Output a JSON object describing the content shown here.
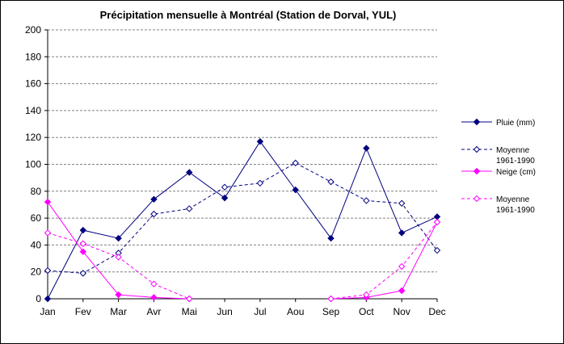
{
  "chart_data": {
    "type": "line",
    "title": "Précipitation mensuelle à Montréal (Station de Dorval, YUL)",
    "xlabel": "",
    "ylabel": "",
    "categories": [
      "Jan",
      "Fev",
      "Mar",
      "Avr",
      "Mai",
      "Jun",
      "Jul",
      "Aou",
      "Sep",
      "Oct",
      "Nov",
      "Dec"
    ],
    "ylim": [
      0,
      200
    ],
    "yticks": [
      "0",
      "20",
      "40",
      "60",
      "80",
      "100",
      "120",
      "140",
      "160",
      "180",
      "200"
    ],
    "grid": true,
    "legend_position": "right",
    "series": [
      {
        "name": "Pluie (mm)",
        "color": "#000080",
        "dashed": false,
        "marker": "diamond-filled",
        "values": [
          0,
          51,
          45,
          74,
          94,
          75,
          117,
          81,
          45,
          112,
          49,
          61
        ]
      },
      {
        "name": "Moyenne 1961-1990",
        "name_lines": [
          "Moyenne",
          "1961-1990"
        ],
        "color": "#000080",
        "dashed": true,
        "marker": "diamond-open",
        "values": [
          21,
          19,
          34,
          63,
          67,
          83,
          86,
          101,
          87,
          73,
          71,
          36
        ]
      },
      {
        "name": "Neige (cm)",
        "color": "#ff00ff",
        "dashed": false,
        "marker": "diamond-filled",
        "values": [
          72,
          35,
          3,
          1,
          0,
          null,
          null,
          null,
          0,
          1,
          6,
          57
        ]
      },
      {
        "name": "Moyenne 1961-1990",
        "name_lines": [
          "Moyenne",
          "1961-1990"
        ],
        "color": "#ff00ff",
        "dashed": true,
        "marker": "diamond-open",
        "values": [
          49,
          41,
          31,
          11,
          0,
          null,
          null,
          null,
          0,
          3,
          24,
          57
        ]
      }
    ]
  }
}
